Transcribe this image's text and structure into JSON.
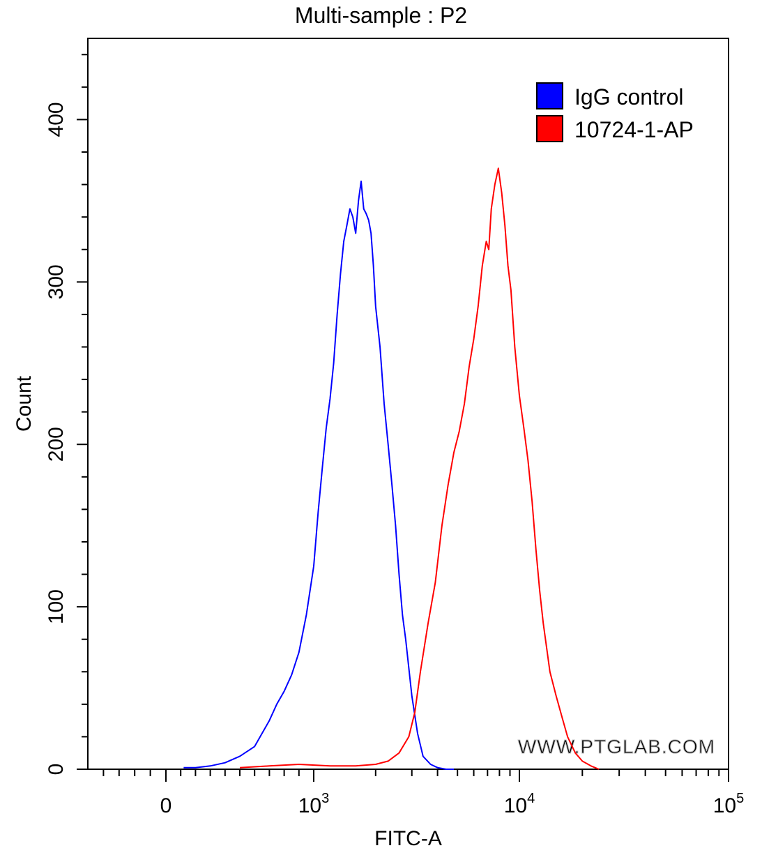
{
  "chart_data": {
    "type": "line",
    "title": "Multi-sample : P2",
    "xlabel": "FITC-A",
    "ylabel": "Count",
    "x_scale": "biexponential",
    "xlim": [
      -500,
      100000
    ],
    "ylim": [
      0,
      450
    ],
    "x_ticks": [
      {
        "value": 0,
        "label": "0",
        "sup": ""
      },
      {
        "value": 1000,
        "label": "10",
        "sup": "3"
      },
      {
        "value": 10000,
        "label": "10",
        "sup": "4"
      },
      {
        "value": 100000,
        "label": "10",
        "sup": "5"
      }
    ],
    "y_ticks": [
      {
        "value": 0,
        "label": "0"
      },
      {
        "value": 100,
        "label": "100"
      },
      {
        "value": 200,
        "label": "200"
      },
      {
        "value": 300,
        "label": "300"
      },
      {
        "value": 400,
        "label": "400"
      }
    ],
    "legend_position": "top-right",
    "watermark": "WWW.PTGLAB.COM",
    "series": [
      {
        "name": "IgG control",
        "color": "#0000ff",
        "x": [
          120,
          200,
          300,
          400,
          500,
          600,
          650,
          700,
          750,
          800,
          850,
          900,
          950,
          1000,
          1050,
          1100,
          1150,
          1200,
          1250,
          1300,
          1350,
          1400,
          1450,
          1500,
          1550,
          1600,
          1650,
          1700,
          1750,
          1800,
          1850,
          1900,
          1950,
          2000,
          2100,
          2200,
          2300,
          2400,
          2500,
          2600,
          2700,
          2800,
          3000,
          3200,
          3400,
          3700,
          4000,
          4400,
          4800
        ],
        "y": [
          1,
          1,
          2,
          4,
          8,
          14,
          22,
          30,
          40,
          48,
          58,
          72,
          95,
          125,
          158,
          185,
          210,
          228,
          250,
          280,
          305,
          325,
          335,
          345,
          340,
          330,
          350,
          362,
          345,
          342,
          338,
          330,
          310,
          285,
          260,
          225,
          200,
          175,
          150,
          120,
          95,
          80,
          45,
          22,
          8,
          3,
          1,
          0,
          0
        ]
      },
      {
        "name": "10724-1-AP",
        "color": "#ff0000",
        "x": [
          500,
          700,
          900,
          1200,
          1600,
          2000,
          2300,
          2600,
          2900,
          3100,
          3300,
          3600,
          3900,
          4200,
          4500,
          4800,
          5100,
          5400,
          5700,
          6000,
          6300,
          6600,
          6900,
          7100,
          7300,
          7600,
          7900,
          8200,
          8500,
          8800,
          9100,
          9500,
          10000,
          10500,
          11000,
          11500,
          12000,
          12500,
          13000,
          14000,
          15000,
          16000,
          17000,
          18500,
          20000,
          22000,
          24000
        ],
        "y": [
          1,
          2,
          3,
          2,
          2,
          3,
          5,
          10,
          20,
          35,
          60,
          90,
          115,
          150,
          175,
          195,
          208,
          225,
          248,
          265,
          285,
          310,
          325,
          320,
          345,
          360,
          370,
          355,
          335,
          310,
          295,
          260,
          230,
          210,
          190,
          165,
          135,
          110,
          90,
          60,
          45,
          32,
          20,
          10,
          5,
          2,
          0
        ]
      }
    ]
  }
}
